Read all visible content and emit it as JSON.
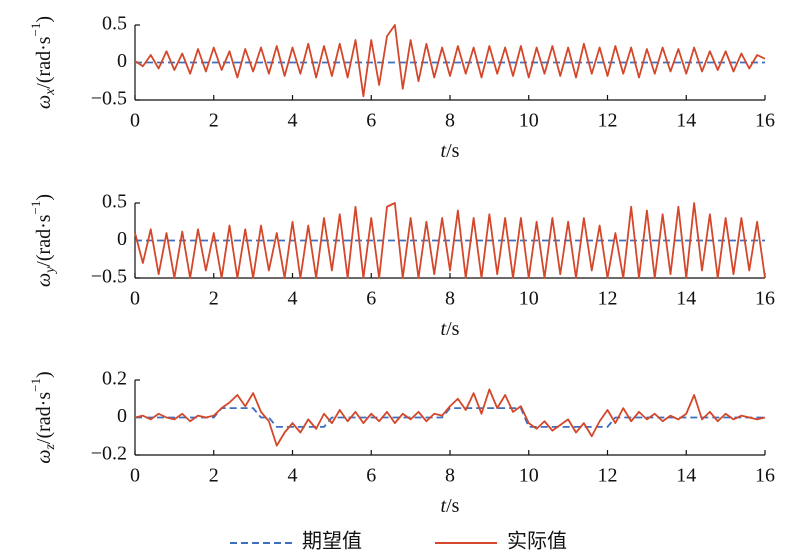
{
  "chart_data": [
    {
      "type": "line",
      "ylabel": {
        "symbol": "ω",
        "sub": "x",
        "unit": "/(rad·s",
        "sup": "−1",
        "close": ")"
      },
      "xlabel": {
        "var": "t",
        "unit": "/s"
      },
      "xlim": [
        0,
        16
      ],
      "xticks": [
        0,
        2,
        4,
        6,
        8,
        10,
        12,
        14,
        16
      ],
      "ylim": [
        -0.5,
        0.5
      ],
      "yticks": [
        {
          "value": -0.5,
          "label": "−0.5"
        },
        0,
        0.5
      ],
      "x": [
        0,
        0.2,
        0.4,
        0.6,
        0.8,
        1,
        1.2,
        1.4,
        1.6,
        1.8,
        2,
        2.2,
        2.4,
        2.6,
        2.8,
        3,
        3.2,
        3.4,
        3.6,
        3.8,
        4,
        4.2,
        4.4,
        4.6,
        4.8,
        5,
        5.2,
        5.4,
        5.6,
        5.8,
        6,
        6.2,
        6.4,
        6.6,
        6.8,
        7,
        7.2,
        7.4,
        7.6,
        7.8,
        8,
        8.2,
        8.4,
        8.6,
        8.8,
        9,
        9.2,
        9.4,
        9.6,
        9.8,
        10,
        10.2,
        10.4,
        10.6,
        10.8,
        11,
        11.2,
        11.4,
        11.6,
        11.8,
        12,
        12.2,
        12.4,
        12.6,
        12.8,
        13,
        13.2,
        13.4,
        13.6,
        13.8,
        14,
        14.2,
        14.4,
        14.6,
        14.8,
        15,
        15.2,
        15.4,
        15.6,
        15.8,
        16
      ],
      "series": [
        {
          "name": "期望值",
          "color": "#3b6fc0",
          "linestyle": "dashed",
          "values": [
            0,
            0,
            0,
            0,
            0,
            0,
            0,
            0,
            0,
            0,
            0,
            0,
            0,
            0,
            0,
            0,
            0,
            0,
            0,
            0,
            0,
            0,
            0,
            0,
            0,
            0,
            0,
            0,
            0,
            0,
            0,
            0,
            0,
            0,
            0,
            0,
            0,
            0,
            0,
            0,
            0,
            0,
            0,
            0,
            0,
            0,
            0,
            0,
            0,
            0,
            0,
            0,
            0,
            0,
            0,
            0,
            0,
            0,
            0,
            0,
            0,
            0,
            0,
            0,
            0,
            0,
            0,
            0,
            0,
            0,
            0,
            0,
            0,
            0,
            0,
            0,
            0,
            0,
            0,
            0,
            0
          ]
        },
        {
          "name": "实际值",
          "color": "#d4472a",
          "linestyle": "solid",
          "values": [
            0.02,
            -0.05,
            0.1,
            -0.08,
            0.15,
            -0.1,
            0.12,
            -0.15,
            0.18,
            -0.12,
            0.2,
            -0.1,
            0.15,
            -0.2,
            0.18,
            -0.12,
            0.2,
            -0.15,
            0.22,
            -0.18,
            0.2,
            -0.15,
            0.25,
            -0.2,
            0.22,
            -0.18,
            0.25,
            -0.2,
            0.3,
            -0.45,
            0.3,
            -0.3,
            0.35,
            0.5,
            -0.35,
            0.3,
            -0.25,
            0.25,
            -0.2,
            0.2,
            -0.18,
            0.22,
            -0.15,
            0.2,
            -0.2,
            0.22,
            -0.15,
            0.2,
            -0.18,
            0.22,
            -0.2,
            0.2,
            -0.15,
            0.22,
            -0.18,
            0.2,
            -0.2,
            0.25,
            -0.15,
            0.2,
            -0.18,
            0.22,
            -0.15,
            0.2,
            -0.2,
            0.18,
            -0.15,
            0.2,
            -0.12,
            0.18,
            -0.15,
            0.2,
            -0.12,
            0.15,
            -0.1,
            0.15,
            -0.12,
            0.12,
            -0.08,
            0.1,
            0.05
          ]
        }
      ]
    },
    {
      "type": "line",
      "ylabel": {
        "symbol": "ω",
        "sub": "y",
        "unit": "/(rad·s",
        "sup": "−1",
        "close": ")"
      },
      "xlabel": {
        "var": "t",
        "unit": "/s"
      },
      "xlim": [
        0,
        16
      ],
      "xticks": [
        0,
        2,
        4,
        6,
        8,
        10,
        12,
        14,
        16
      ],
      "ylim": [
        -0.5,
        0.5
      ],
      "yticks": [
        {
          "value": -0.5,
          "label": "−0.5"
        },
        0,
        0.5
      ],
      "x": [
        0,
        0.2,
        0.4,
        0.6,
        0.8,
        1,
        1.2,
        1.4,
        1.6,
        1.8,
        2,
        2.2,
        2.4,
        2.6,
        2.8,
        3,
        3.2,
        3.4,
        3.6,
        3.8,
        4,
        4.2,
        4.4,
        4.6,
        4.8,
        5,
        5.2,
        5.4,
        5.6,
        5.8,
        6,
        6.2,
        6.4,
        6.6,
        6.8,
        7,
        7.2,
        7.4,
        7.6,
        7.8,
        8,
        8.2,
        8.4,
        8.6,
        8.8,
        9,
        9.2,
        9.4,
        9.6,
        9.8,
        10,
        10.2,
        10.4,
        10.6,
        10.8,
        11,
        11.2,
        11.4,
        11.6,
        11.8,
        12,
        12.2,
        12.4,
        12.6,
        12.8,
        13,
        13.2,
        13.4,
        13.6,
        13.8,
        14,
        14.2,
        14.4,
        14.6,
        14.8,
        15,
        15.2,
        15.4,
        15.6,
        15.8,
        16
      ],
      "series": [
        {
          "color": "#3b6fc0",
          "linestyle": "dashed",
          "values": [
            0,
            0,
            0,
            0,
            0,
            0,
            0,
            0,
            0,
            0,
            0,
            0,
            0,
            0,
            0,
            0,
            0,
            0,
            0,
            0,
            0,
            0,
            0,
            0,
            0,
            0,
            0,
            0,
            0,
            0,
            0,
            0,
            0,
            0,
            0,
            0,
            0,
            0,
            0,
            0,
            0,
            0,
            0,
            0,
            0,
            0,
            0,
            0,
            0,
            0,
            0,
            0,
            0,
            0,
            0,
            0,
            0,
            0,
            0,
            0,
            0,
            0,
            0,
            0,
            0,
            0,
            0,
            0,
            0,
            0,
            0,
            0,
            0,
            0,
            0,
            0,
            0,
            0,
            0,
            0,
            0
          ]
        },
        {
          "color": "#d4472a",
          "linestyle": "solid",
          "values": [
            0.1,
            -0.3,
            0.15,
            -0.45,
            0.1,
            -0.5,
            0.12,
            -0.5,
            0.15,
            -0.4,
            0.1,
            -0.5,
            0.2,
            -0.5,
            0.15,
            -0.5,
            0.2,
            -0.4,
            0.1,
            -0.5,
            0.25,
            -0.5,
            0.2,
            -0.5,
            0.3,
            -0.4,
            0.35,
            -0.5,
            0.45,
            -0.5,
            0.3,
            -0.5,
            0.45,
            0.5,
            -0.5,
            0.3,
            -0.5,
            0.25,
            -0.45,
            0.3,
            -0.4,
            0.4,
            -0.5,
            0.3,
            -0.5,
            0.35,
            -0.45,
            0.3,
            -0.5,
            0.3,
            -0.5,
            0.25,
            -0.5,
            0.3,
            -0.45,
            0.25,
            -0.5,
            0.3,
            -0.4,
            0.2,
            -0.5,
            0.1,
            -0.5,
            0.45,
            -0.5,
            0.4,
            -0.5,
            0.35,
            -0.45,
            0.45,
            -0.5,
            0.5,
            -0.4,
            0.35,
            -0.5,
            0.3,
            -0.45,
            0.3,
            -0.4,
            0.25,
            -0.5
          ]
        }
      ]
    },
    {
      "type": "line",
      "ylabel": {
        "symbol": "ω",
        "sub": "z",
        "unit": "/(rad·s",
        "sup": "−1",
        "close": ")"
      },
      "xlabel": {
        "var": "t",
        "unit": "/s"
      },
      "xlim": [
        0,
        16
      ],
      "xticks": [
        0,
        2,
        4,
        6,
        8,
        10,
        12,
        14,
        16
      ],
      "ylim": [
        -0.2,
        0.2
      ],
      "yticks": [
        {
          "value": -0.2,
          "label": "−0.2"
        },
        0,
        0.2
      ],
      "x": [
        0,
        0.2,
        0.4,
        0.6,
        0.8,
        1,
        1.2,
        1.4,
        1.6,
        1.8,
        2,
        2.2,
        2.4,
        2.6,
        2.8,
        3,
        3.2,
        3.4,
        3.6,
        3.8,
        4,
        4.2,
        4.4,
        4.6,
        4.8,
        5,
        5.2,
        5.4,
        5.6,
        5.8,
        6,
        6.2,
        6.4,
        6.6,
        6.8,
        7,
        7.2,
        7.4,
        7.6,
        7.8,
        8,
        8.2,
        8.4,
        8.6,
        8.8,
        9,
        9.2,
        9.4,
        9.6,
        9.8,
        10,
        10.2,
        10.4,
        10.6,
        10.8,
        11,
        11.2,
        11.4,
        11.6,
        11.8,
        12,
        12.2,
        12.4,
        12.6,
        12.8,
        13,
        13.2,
        13.4,
        13.6,
        13.8,
        14,
        14.2,
        14.4,
        14.6,
        14.8,
        15,
        15.2,
        15.4,
        15.6,
        15.8,
        16
      ],
      "series": [
        {
          "color": "#3b6fc0",
          "linestyle": "dashed",
          "values": [
            0,
            0,
            0,
            0,
            0,
            0,
            0,
            0,
            0,
            0,
            0,
            0.05,
            0.05,
            0.05,
            0.05,
            0.05,
            0,
            0,
            -0.05,
            -0.05,
            -0.05,
            -0.05,
            -0.05,
            -0.05,
            -0.05,
            0,
            0,
            0,
            0,
            0,
            0,
            0,
            0,
            0,
            0,
            0,
            0,
            0,
            0,
            0,
            0.05,
            0.05,
            0.05,
            0.05,
            0.05,
            0.05,
            0.05,
            0.05,
            0.05,
            0.05,
            -0.05,
            -0.05,
            -0.05,
            -0.05,
            -0.05,
            -0.05,
            -0.05,
            -0.05,
            -0.05,
            -0.05,
            -0.05,
            0,
            0,
            0,
            0,
            0,
            0,
            0,
            0,
            0,
            0,
            0,
            0,
            0,
            0,
            0,
            0,
            0,
            0,
            0,
            0
          ]
        },
        {
          "color": "#d4472a",
          "linestyle": "solid",
          "values": [
            0,
            0.01,
            -0.01,
            0.02,
            0,
            -0.01,
            0.02,
            -0.02,
            0.01,
            0,
            0.01,
            0.05,
            0.08,
            0.12,
            0.06,
            0.13,
            0.03,
            -0.02,
            -0.15,
            -0.08,
            -0.03,
            -0.08,
            -0.01,
            -0.06,
            0.02,
            -0.03,
            0.04,
            -0.02,
            0.03,
            -0.03,
            0.02,
            -0.02,
            0.03,
            -0.03,
            0.02,
            -0.01,
            0.03,
            -0.02,
            0.02,
            0.01,
            0.06,
            0.1,
            0.04,
            0.13,
            0.02,
            0.15,
            0.05,
            0.12,
            0.03,
            0.06,
            -0.03,
            -0.06,
            -0.02,
            -0.07,
            -0.04,
            -0.01,
            -0.08,
            -0.03,
            -0.1,
            -0.02,
            0.04,
            -0.03,
            0.05,
            -0.02,
            0.03,
            -0.01,
            0.02,
            -0.02,
            0.01,
            -0.01,
            0.02,
            0.12,
            -0.01,
            0.03,
            -0.02,
            0.02,
            -0.01,
            0.01,
            0,
            -0.01,
            0
          ]
        }
      ]
    }
  ]
}
